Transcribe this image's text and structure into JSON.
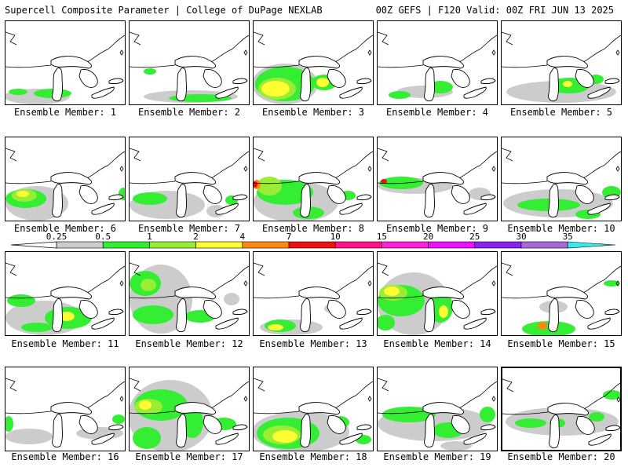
{
  "header": {
    "title_left": "Supercell Composite Parameter | College of DuPage NEXLAB",
    "title_right": "00Z GEFS | F120 Valid: 00Z FRI JUN 13 2025"
  },
  "panels": [
    {
      "member": 1,
      "label": "Ensemble Member: 1"
    },
    {
      "member": 2,
      "label": "Ensemble Member: 2"
    },
    {
      "member": 3,
      "label": "Ensemble Member: 3"
    },
    {
      "member": 4,
      "label": "Ensemble Member: 4"
    },
    {
      "member": 5,
      "label": "Ensemble Member: 5"
    },
    {
      "member": 6,
      "label": "Ensemble Member: 6"
    },
    {
      "member": 7,
      "label": "Ensemble Member: 7"
    },
    {
      "member": 8,
      "label": "Ensemble Member: 8"
    },
    {
      "member": 9,
      "label": "Ensemble Member: 9"
    },
    {
      "member": 10,
      "label": "Ensemble Member: 10"
    },
    {
      "member": 11,
      "label": "Ensemble Member: 11"
    },
    {
      "member": 12,
      "label": "Ensemble Member: 12"
    },
    {
      "member": 13,
      "label": "Ensemble Member: 13"
    },
    {
      "member": 14,
      "label": "Ensemble Member: 14"
    },
    {
      "member": 15,
      "label": "Ensemble Member: 15"
    },
    {
      "member": 16,
      "label": "Ensemble Member: 16"
    },
    {
      "member": 17,
      "label": "Ensemble Member: 17"
    },
    {
      "member": 18,
      "label": "Ensemble Member: 18"
    },
    {
      "member": 19,
      "label": "Ensemble Member: 19"
    },
    {
      "member": 20,
      "label": "Ensemble Member: 20"
    }
  ],
  "selected_member": 20,
  "colorbar": {
    "ticks": [
      "0.25",
      "0.5",
      "1",
      "2",
      "4",
      "7",
      "10",
      "15",
      "20",
      "25",
      "30",
      "35"
    ],
    "colors": [
      "#cccccc",
      "#33ee33",
      "#99ee33",
      "#ffff33",
      "#ff8811",
      "#ee1111",
      "#ff1188",
      "#ff22dd",
      "#ee11ff",
      "#8822ee",
      "#aa66dd",
      "#33eeee"
    ]
  }
}
